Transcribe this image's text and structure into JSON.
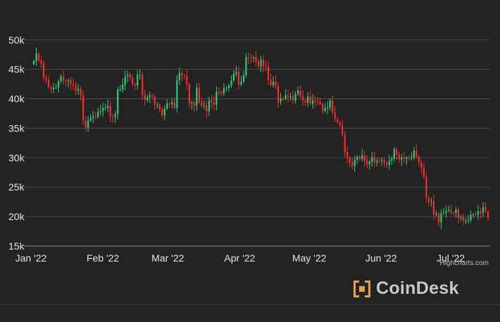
{
  "chart_data": {
    "type": "candlestick",
    "title": "",
    "xlabel": "",
    "ylabel": "",
    "ylim": [
      15000,
      52000
    ],
    "yticks": [
      15000,
      20000,
      25000,
      30000,
      35000,
      40000,
      45000,
      50000
    ],
    "ytick_labels": [
      "15k",
      "20k",
      "25k",
      "30k",
      "35k",
      "40k",
      "45k",
      "50k"
    ],
    "xlim": [
      "2022-01-01",
      "2022-07-18"
    ],
    "xticks": [
      "2022-01-01",
      "2022-02-01",
      "2022-03-01",
      "2022-04-01",
      "2022-05-01",
      "2022-06-01",
      "2022-07-01"
    ],
    "xtick_labels": [
      "Jan '22",
      "Feb '22",
      "Mar '22",
      "Apr '22",
      "May '22",
      "Jun '22",
      "Jul '22"
    ],
    "grid": true,
    "up_color": "#26d07c",
    "down_color": "#ff2a2a",
    "grid_color": "#4a4a4a",
    "close": [
      46400,
      47700,
      46500,
      46000,
      43500,
      43200,
      42000,
      41600,
      41900,
      41900,
      43000,
      43800,
      43100,
      43000,
      43100,
      42500,
      42300,
      41400,
      41700,
      40600,
      36300,
      35100,
      36300,
      36700,
      37000,
      36900,
      37800,
      37900,
      38400,
      38500,
      38800,
      37000,
      36900,
      37400,
      41600,
      41600,
      42400,
      43800,
      44100,
      43600,
      42500,
      42300,
      44100,
      44100,
      40600,
      39800,
      40300,
      40600,
      40400,
      39000,
      39000,
      38200,
      37200,
      38300,
      39200,
      39100,
      39400,
      38500,
      43200,
      44400,
      44000,
      43900,
      42500,
      39200,
      39400,
      38800,
      41900,
      39400,
      38800,
      38900,
      37900,
      39700,
      39400,
      39000,
      41200,
      41100,
      40900,
      41800,
      41800,
      42300,
      43100,
      44300,
      44600,
      42400,
      42900,
      44000,
      47100,
      47000,
      46900,
      47100,
      46400,
      45500,
      46600,
      45600,
      45500,
      43200,
      42300,
      42900,
      42200,
      39500,
      40100,
      40000,
      40600,
      40400,
      40400,
      39700,
      40800,
      41400,
      40400,
      39700,
      39400,
      40400,
      39200,
      39700,
      39600,
      39500,
      39100,
      37900,
      38500,
      38500,
      39700,
      37700,
      36600,
      36000,
      35500,
      34000,
      31000,
      30000,
      29200,
      28600,
      29600,
      30100,
      29800,
      30400,
      29500,
      28900,
      29300,
      30100,
      29200,
      29500,
      29400,
      29600,
      29100,
      28800,
      29500,
      29800,
      31500,
      30500,
      29700,
      30000,
      29800,
      30100,
      30000,
      30100,
      31200,
      30200,
      29200,
      28300,
      26800,
      23200,
      22500,
      22600,
      20400,
      20500,
      19000,
      20500,
      20600,
      21000,
      21200,
      20700,
      20600,
      21200,
      19800,
      19900,
      19300,
      19300,
      19400,
      20300,
      20400,
      20300,
      20900,
      20600,
      21600,
      20900,
      19900
    ]
  },
  "credits": "Highcharts.com",
  "brand": {
    "name": "CoinDesk",
    "color": "#e8a33a"
  }
}
